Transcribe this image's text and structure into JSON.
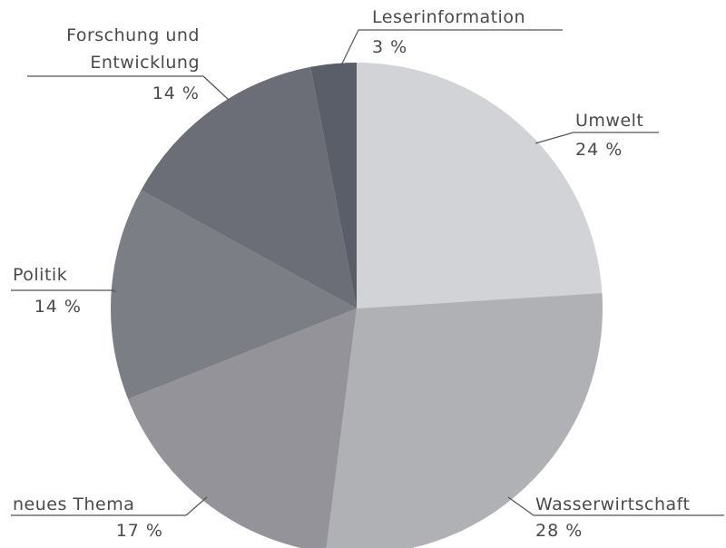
{
  "chart_data": {
    "type": "pie",
    "categories": [
      "Umwelt",
      "Wasserwirtschaft",
      "neues Thema",
      "Politik",
      "Forschung und Entwicklung",
      "Leserinformation"
    ],
    "values": [
      24,
      28,
      17,
      14,
      14,
      3
    ],
    "value_labels": [
      "24 %",
      "28 %",
      "17 %",
      "14 %",
      "14 %",
      "3 %"
    ],
    "colors": [
      "#d2d3d6",
      "#b0b1b5",
      "#939399",
      "#7c7e85",
      "#6b6e76",
      "#5a5e68"
    ]
  }
}
